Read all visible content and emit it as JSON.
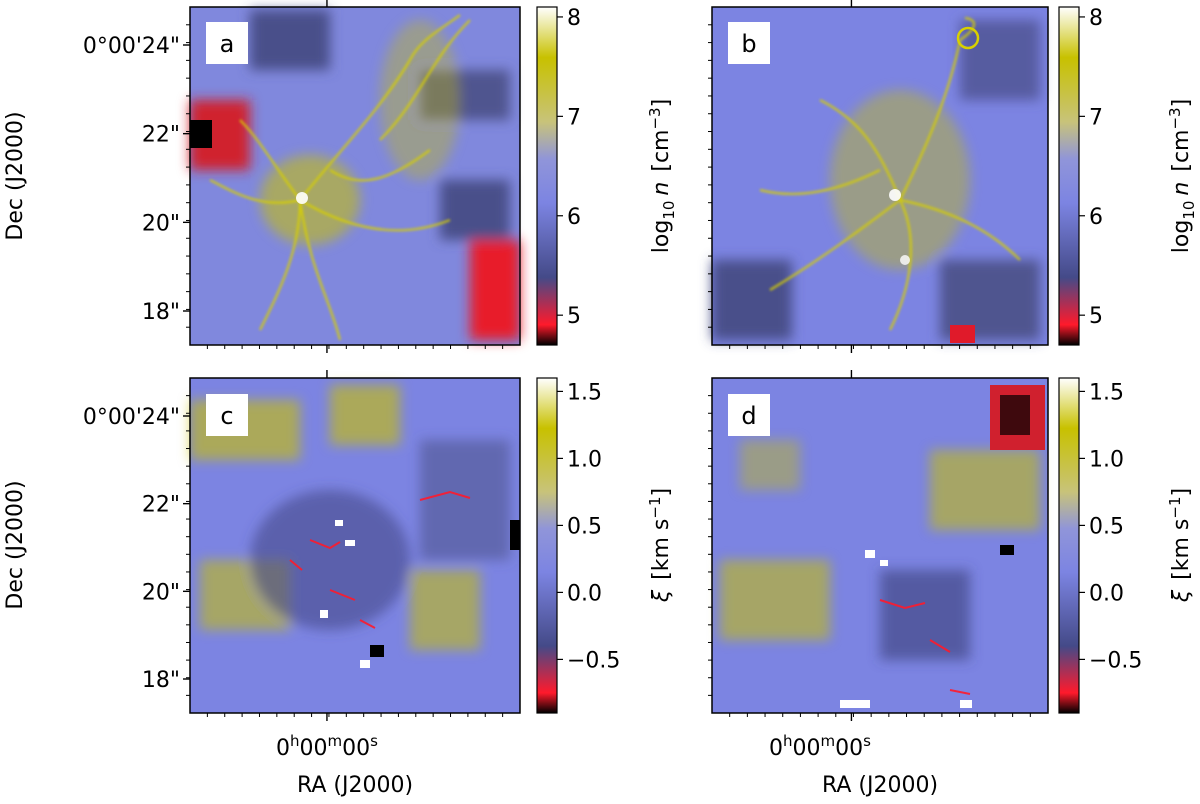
{
  "chart_data": [
    {
      "type": "heatmap",
      "panel_label": "a",
      "colorbar": {
        "label_main": "log",
        "label_sub": "10",
        "label_var": "n",
        "label_unit": "[cm",
        "label_unit_sup": "−3",
        "label_unit_end": "]",
        "ticks": [
          "5",
          "6",
          "7",
          "8"
        ],
        "tick_values": [
          5,
          6,
          7,
          8
        ],
        "range": [
          4.7,
          8.1
        ]
      },
      "ylabel": "Dec (J2000)",
      "yticks": [
        "0°00'24\"",
        "22\"",
        "20\"",
        "18\""
      ],
      "xticks": [],
      "xlabel": ""
    },
    {
      "type": "heatmap",
      "panel_label": "b",
      "colorbar": {
        "label_main": "log",
        "label_sub": "10",
        "label_var": "n",
        "label_unit": "[cm",
        "label_unit_sup": "−3",
        "label_unit_end": "]",
        "ticks": [
          "5",
          "6",
          "7",
          "8"
        ],
        "tick_values": [
          5,
          6,
          7,
          8
        ],
        "range": [
          4.7,
          8.1
        ]
      },
      "ylabel": "",
      "yticks": [],
      "xticks": [],
      "xlabel": ""
    },
    {
      "type": "heatmap",
      "panel_label": "c",
      "colorbar": {
        "label_var": "ξ",
        "label_unit": "[km s",
        "label_unit_sup": "−1",
        "label_unit_end": "]",
        "ticks": [
          "−0.5",
          "0.0",
          "0.5",
          "1.0",
          "1.5"
        ],
        "tick_values": [
          -0.5,
          0.0,
          0.5,
          1.0,
          1.5
        ],
        "range": [
          -0.9,
          1.6
        ]
      },
      "ylabel": "Dec (J2000)",
      "yticks": [
        "0°00'24\"",
        "22\"",
        "20\"",
        "18\""
      ],
      "xticks": [
        "0h00m00s"
      ],
      "xtick_parts": {
        "h": "h",
        "m": "m",
        "s": "s",
        "v1": "0",
        "v2": "00",
        "v3": "00"
      },
      "xlabel": "RA (J2000)"
    },
    {
      "type": "heatmap",
      "panel_label": "d",
      "colorbar": {
        "label_var": "ξ",
        "label_unit": "[km s",
        "label_unit_sup": "−1",
        "label_unit_end": "]",
        "ticks": [
          "−0.5",
          "0.0",
          "0.5",
          "1.0",
          "1.5"
        ],
        "tick_values": [
          -0.5,
          0.0,
          0.5,
          1.0,
          1.5
        ],
        "range": [
          -0.9,
          1.6
        ]
      },
      "ylabel": "",
      "yticks": [],
      "xticks": [
        "0h00m00s"
      ],
      "xtick_parts": {
        "h": "h",
        "m": "m",
        "s": "s",
        "v1": "0",
        "v2": "00",
        "v3": "00"
      },
      "xlabel": "RA (J2000)"
    }
  ],
  "colors": {
    "cmap": [
      "#000000",
      "#ff1a2b",
      "#444a88",
      "#7c84e2",
      "#9095d9",
      "#c8c37a",
      "#c8c100",
      "#ffffff"
    ]
  }
}
